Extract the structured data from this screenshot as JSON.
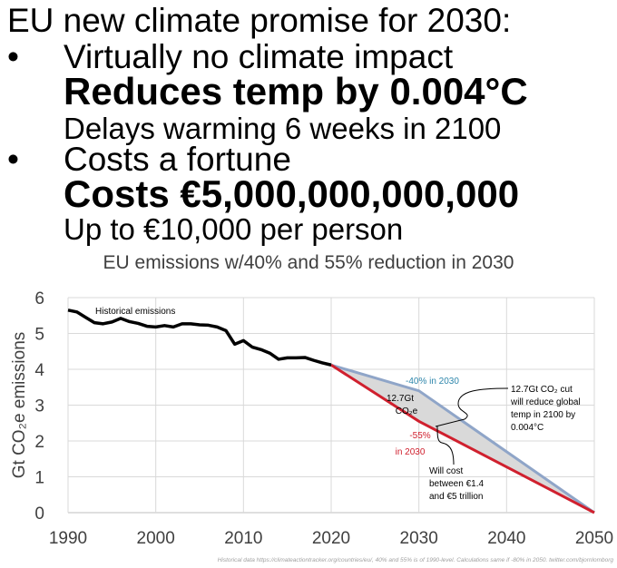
{
  "headline": {
    "title": "EU new climate promise for 2030:",
    "bullet1": "Virtually no climate impact",
    "bullet1_bold": "Reduces temp by 0.004°C",
    "bullet1_sub": "Delays warming 6 weeks in 2100",
    "bullet2": "Costs a fortune",
    "bullet2_bold": "Costs €5,000,000,000,000",
    "bullet2_sub": "Up to €10,000 per person",
    "bullet_glyph": "•"
  },
  "chart_data": {
    "type": "line",
    "title": "EU emissions w/40% and 55% reduction in 2030",
    "xlabel": "",
    "ylabel": "Gt CO₂e emissions",
    "xlim": [
      1990,
      2050
    ],
    "ylim": [
      0,
      6
    ],
    "xticks": [
      1990,
      2000,
      2010,
      2020,
      2030,
      2040,
      2050
    ],
    "yticks": [
      0,
      1,
      2,
      3,
      4,
      5,
      6
    ],
    "grid": true,
    "series": [
      {
        "name": "Historical emissions",
        "color": "#000000",
        "x": [
          1990,
          1991,
          1992,
          1993,
          1994,
          1995,
          1996,
          1997,
          1998,
          1999,
          2000,
          2001,
          2002,
          2003,
          2004,
          2005,
          2006,
          2007,
          2008,
          2009,
          2010,
          2011,
          2012,
          2013,
          2014,
          2015,
          2016,
          2017,
          2018,
          2019,
          2020
        ],
        "y": [
          5.65,
          5.6,
          5.45,
          5.3,
          5.27,
          5.32,
          5.42,
          5.33,
          5.28,
          5.2,
          5.18,
          5.22,
          5.18,
          5.27,
          5.27,
          5.24,
          5.23,
          5.18,
          5.08,
          4.7,
          4.8,
          4.62,
          4.55,
          4.45,
          4.28,
          4.32,
          4.32,
          4.33,
          4.25,
          4.18,
          4.12
        ]
      },
      {
        "name": "-40% in 2030",
        "color": "#8FA5C8",
        "x": [
          2020,
          2030,
          2050
        ],
        "y": [
          4.12,
          3.4,
          0
        ]
      },
      {
        "name": "-55% in 2030",
        "color": "#D0202E",
        "x": [
          2020,
          2030,
          2050
        ],
        "y": [
          4.12,
          2.55,
          0
        ]
      }
    ],
    "annotations": {
      "historical": "Historical emissions",
      "minus40": "-40% in 2030",
      "minus55_a": "-55%",
      "minus55_b": "in 2030",
      "gap_a": "12.7Gt",
      "gap_b": "CO₂e",
      "cut": [
        "12.7Gt CO₂ cut",
        "will reduce global",
        "temp in 2100 by",
        "0.004°C"
      ],
      "cost": [
        "Will cost",
        "between €1.4",
        "and €5 trillion"
      ]
    },
    "footnote": "Historical data https://climateactiontracker.org/countries/eu/, 40% and 55% is of 1990-level. Calculations same if -80% in 2050. twitter.com/bjornlomborg"
  }
}
